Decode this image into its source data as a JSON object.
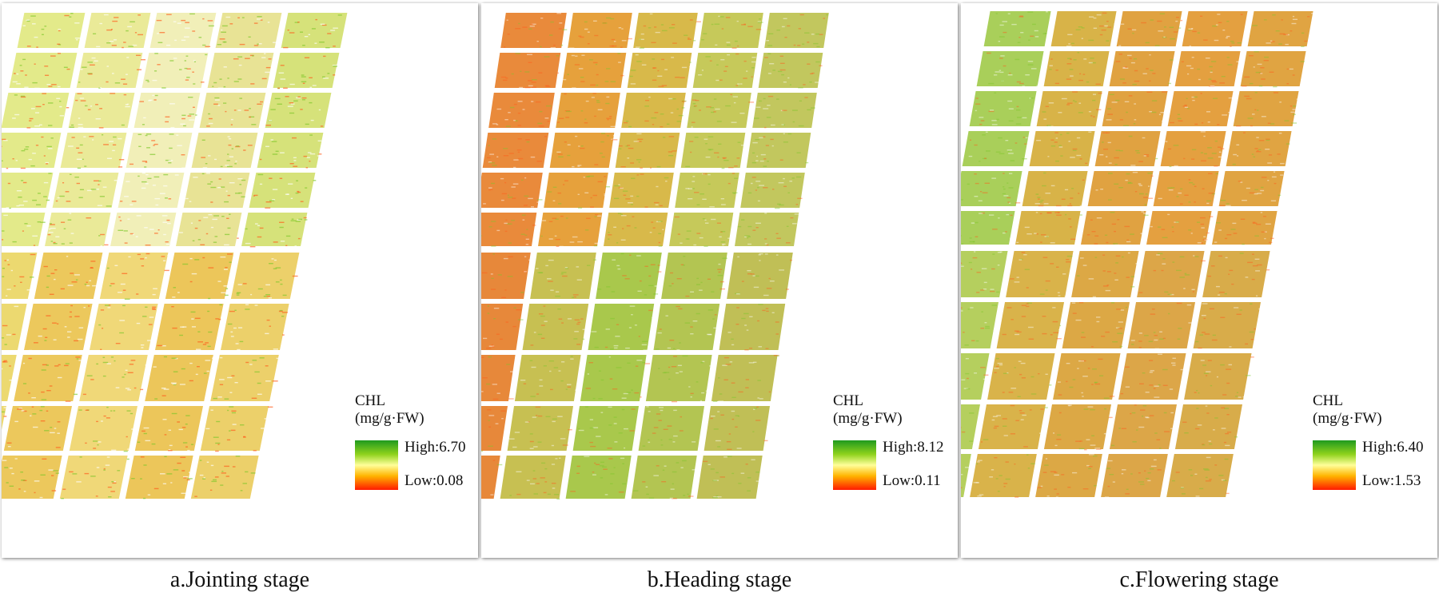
{
  "panels": [
    {
      "id": "jointing",
      "caption": "a.Jointing stage",
      "legend": {
        "title": "CHL",
        "unit": "(mg/g·FW)",
        "high": "High:6.70",
        "low": "Low:0.08",
        "high_value": 6.7,
        "low_value": 0.08
      }
    },
    {
      "id": "heading",
      "caption": "b.Heading stage",
      "legend": {
        "title": "CHL",
        "unit": "(mg/g·FW)",
        "high": "High:8.12",
        "low": "Low:0.11",
        "high_value": 8.12,
        "low_value": 0.11
      }
    },
    {
      "id": "flowering",
      "caption": "c.Flowering stage",
      "legend": {
        "title": "CHL",
        "unit": "(mg/g·FW)",
        "high": "High:6.40",
        "low": "Low:1.53",
        "high_value": 6.4,
        "low_value": 1.53
      }
    }
  ],
  "colors": {
    "high": "#1f9a1f",
    "mid": "#ffff9a",
    "low": "#ff1a00"
  }
}
